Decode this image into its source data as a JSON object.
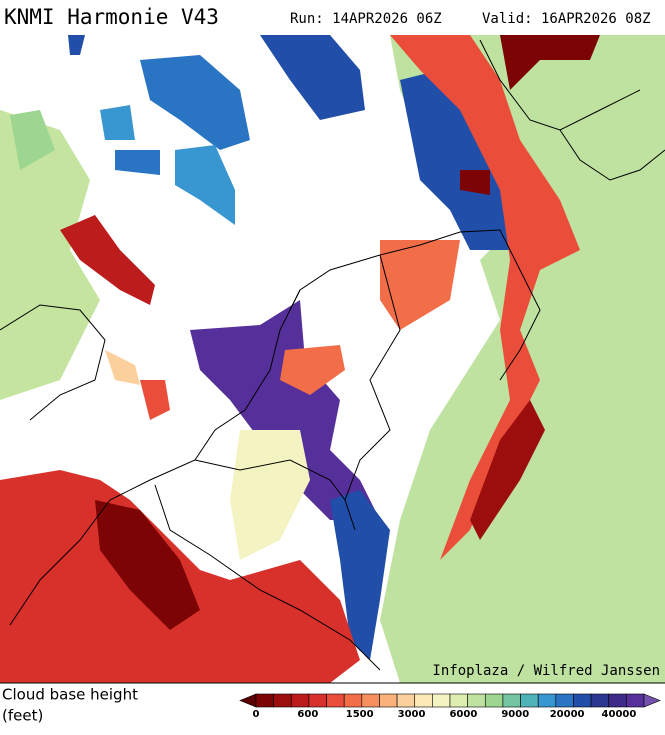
{
  "header": {
    "title": "KNMI Harmonie V43",
    "run": "Run: 14APR2026 06Z",
    "valid": "Valid: 16APR2026 08Z"
  },
  "credit": "Infoplaza / Wilfred Janssen",
  "legend": {
    "label_line1": "Cloud base height",
    "label_line2": "(feet)",
    "ticks": [
      0,
      600,
      1500,
      3000,
      6000,
      9000,
      20000,
      40000
    ],
    "colors": [
      "#5a0000",
      "#7c0404",
      "#9c0e0e",
      "#bc1c1c",
      "#d8302a",
      "#ea4e3a",
      "#f26e48",
      "#f6905e",
      "#f9b27c",
      "#fbd09c",
      "#fce8b6",
      "#f4f4c2",
      "#ddeeb0",
      "#bfe2a0",
      "#9cd690",
      "#74c6a0",
      "#4eb4b8",
      "#3896d0",
      "#2a74c4",
      "#204ea8",
      "#2a3890",
      "#3e2a88",
      "#56309a",
      "#7452ae"
    ]
  }
}
